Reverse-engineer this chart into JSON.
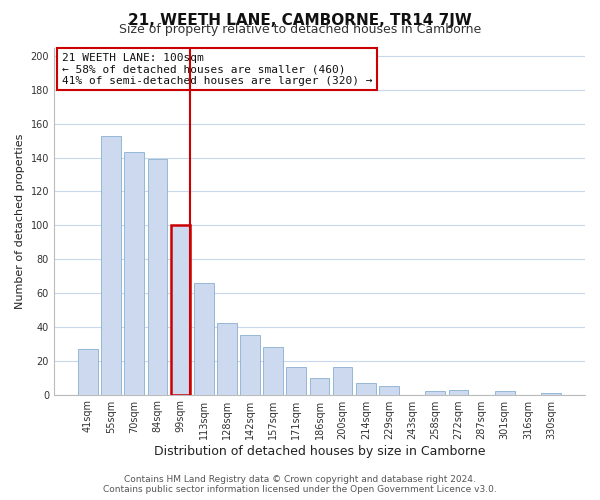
{
  "title": "21, WEETH LANE, CAMBORNE, TR14 7JW",
  "subtitle": "Size of property relative to detached houses in Camborne",
  "xlabel": "Distribution of detached houses by size in Camborne",
  "ylabel": "Number of detached properties",
  "bar_labels": [
    "41sqm",
    "55sqm",
    "70sqm",
    "84sqm",
    "99sqm",
    "113sqm",
    "128sqm",
    "142sqm",
    "157sqm",
    "171sqm",
    "186sqm",
    "200sqm",
    "214sqm",
    "229sqm",
    "243sqm",
    "258sqm",
    "272sqm",
    "287sqm",
    "301sqm",
    "316sqm",
    "330sqm"
  ],
  "bar_values": [
    27,
    153,
    143,
    139,
    100,
    66,
    42,
    35,
    28,
    16,
    10,
    16,
    7,
    5,
    0,
    2,
    3,
    0,
    2,
    0,
    1
  ],
  "bar_color": "#ccd9ee",
  "bar_edge_color": "#8ab0d0",
  "highlight_bar_index": 4,
  "highlight_color": "#cc0000",
  "annotation_title": "21 WEETH LANE: 100sqm",
  "annotation_line1": "← 58% of detached houses are smaller (460)",
  "annotation_line2": "41% of semi-detached houses are larger (320) →",
  "annotation_box_color": "#ffffff",
  "annotation_box_edge": "#cc0000",
  "ylim": [
    0,
    205
  ],
  "yticks": [
    0,
    20,
    40,
    60,
    80,
    100,
    120,
    140,
    160,
    180,
    200
  ],
  "footer1": "Contains HM Land Registry data © Crown copyright and database right 2024.",
  "footer2": "Contains public sector information licensed under the Open Government Licence v3.0.",
  "bg_color": "#ffffff",
  "grid_color": "#c8d8ea",
  "title_fontsize": 11,
  "subtitle_fontsize": 9,
  "xlabel_fontsize": 9,
  "ylabel_fontsize": 8,
  "tick_fontsize": 7,
  "annotation_fontsize": 8,
  "footer_fontsize": 6.5
}
